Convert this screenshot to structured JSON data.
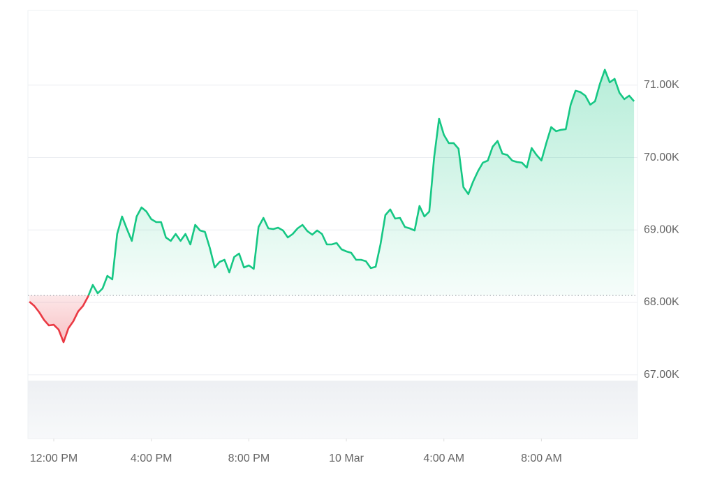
{
  "chart_data": {
    "type": "line",
    "x": [
      -1.0,
      -0.8,
      -0.6,
      -0.4,
      -0.2,
      0.0,
      0.2,
      0.4,
      0.6,
      0.8,
      1.0,
      1.2,
      1.4,
      1.6,
      1.8,
      2.0,
      2.2,
      2.4,
      2.6,
      2.8,
      3.0,
      3.2,
      3.4,
      3.6,
      3.8,
      4.0,
      4.2,
      4.4,
      4.6,
      4.8,
      5.0,
      5.2,
      5.4,
      5.6,
      5.8,
      6.0,
      6.2,
      6.4,
      6.6,
      6.8,
      7.0,
      7.2,
      7.4,
      7.6,
      7.8,
      8.0,
      8.2,
      8.4,
      8.6,
      8.8,
      9.0,
      9.2,
      9.4,
      9.6,
      9.8,
      10.0,
      10.2,
      10.4,
      10.6,
      10.8,
      11.0,
      11.2,
      11.4,
      11.6,
      11.8,
      12.0,
      12.2,
      12.4,
      12.6,
      12.8,
      13.0,
      13.2,
      13.4,
      13.6,
      13.8,
      14.0,
      14.2,
      14.4,
      14.6,
      14.8,
      15.0,
      15.2,
      15.4,
      15.6,
      15.8,
      16.0,
      16.2,
      16.4,
      16.6,
      16.8,
      17.0,
      17.2,
      17.4,
      17.6,
      17.8,
      18.0,
      18.2,
      18.4,
      18.6,
      18.8,
      19.0,
      19.2,
      19.4,
      19.6,
      19.8,
      20.0,
      20.2,
      20.4,
      20.6,
      20.8,
      21.0,
      21.2,
      21.4,
      21.6,
      21.8,
      22.0,
      22.2,
      22.4,
      22.6,
      22.8,
      23.0,
      23.2,
      23.4,
      23.6,
      23.8
    ],
    "series": [
      {
        "color": "#16c784",
        "negative_color": "#ea3943",
        "values": [
          68010,
          67952,
          67865,
          67759,
          67682,
          67691,
          67624,
          67450,
          67643,
          67740,
          67875,
          67952,
          68077,
          68241,
          68125,
          68193,
          68366,
          68318,
          68945,
          69186,
          69012,
          68849,
          69186,
          69311,
          69254,
          69148,
          69109,
          69109,
          68897,
          68849,
          68945,
          68849,
          68945,
          68800,
          69070,
          68993,
          68974,
          68752,
          68482,
          68559,
          68588,
          68415,
          68627,
          68675,
          68482,
          68511,
          68463,
          69041,
          69167,
          69022,
          69012,
          69032,
          68993,
          68897,
          68945,
          69022,
          69070,
          68984,
          68935,
          68993,
          68945,
          68800,
          68800,
          68820,
          68733,
          68704,
          68685,
          68588,
          68588,
          68569,
          68473,
          68492,
          68800,
          69205,
          69283,
          69157,
          69167,
          69041,
          69022,
          68993,
          69331,
          69186,
          69254,
          70006,
          70536,
          70314,
          70199,
          70199,
          70121,
          69591,
          69495,
          69668,
          69813,
          69929,
          69958,
          70150,
          70228,
          70054,
          70035,
          69958,
          69938,
          69929,
          69861,
          70131,
          70035,
          69958,
          70199,
          70420,
          70363,
          70382,
          70391,
          70729,
          70922,
          70903,
          70854,
          70729,
          70777,
          71018,
          71211,
          71038,
          71086,
          70893,
          70806,
          70854,
          70777
        ]
      }
    ],
    "baseline": 68096,
    "xlim": [
      -1.06,
      23.94
    ],
    "xticks": [
      {
        "value": 0,
        "label": "12:00 PM"
      },
      {
        "value": 4,
        "label": "4:00 PM"
      },
      {
        "value": 8,
        "label": "8:00 PM"
      },
      {
        "value": 12,
        "label": "10 Mar"
      },
      {
        "value": 16,
        "label": "4:00 AM"
      },
      {
        "value": 20,
        "label": "8:00 AM"
      }
    ],
    "ylim": [
      66120,
      72030
    ],
    "yticks": [
      {
        "value": 67000,
        "label": "67.00K"
      },
      {
        "value": 68000,
        "label": "68.00K"
      },
      {
        "value": 69000,
        "label": "69.00K"
      },
      {
        "value": 70000,
        "label": "70.00K"
      },
      {
        "value": 71000,
        "label": "71.00K"
      }
    ],
    "grid": true
  }
}
